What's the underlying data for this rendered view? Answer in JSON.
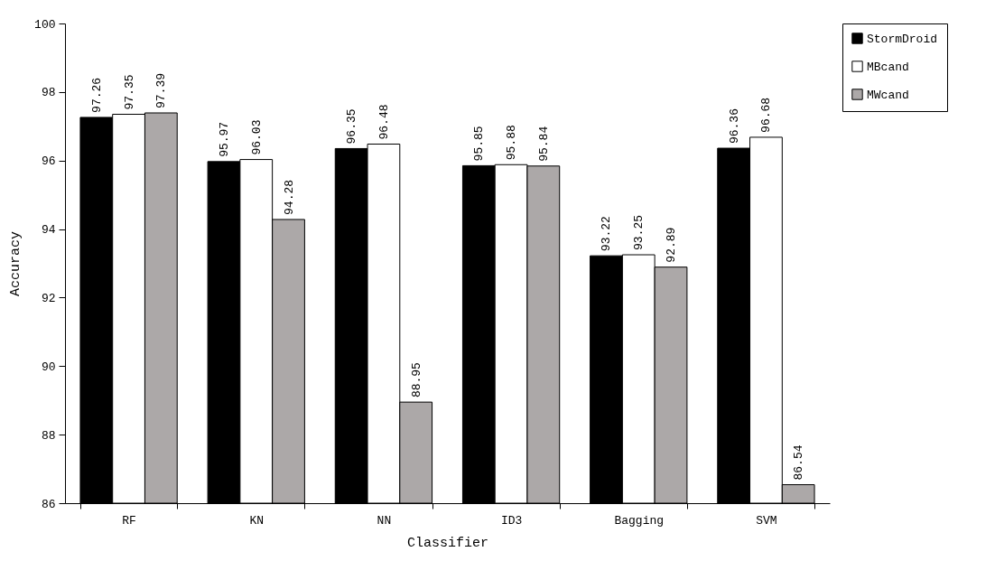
{
  "chart_data": {
    "type": "bar",
    "xlabel": "Classifier",
    "ylabel": "Accuracy",
    "categories": [
      "RF",
      "KN",
      "NN",
      "ID3",
      "Bagging",
      "SVM"
    ],
    "series": [
      {
        "name": "StormDroid",
        "color": "#000000",
        "values": [
          97.26,
          95.97,
          96.35,
          95.85,
          93.22,
          96.36
        ]
      },
      {
        "name": "MBcand",
        "color": "#ffffff",
        "values": [
          97.35,
          96.03,
          96.48,
          95.88,
          93.25,
          96.68
        ]
      },
      {
        "name": "MWcand",
        "color": "#aca8a8",
        "values": [
          97.39,
          94.28,
          88.95,
          95.84,
          92.89,
          86.54
        ]
      }
    ],
    "ylim": [
      86,
      100
    ],
    "yticks": [
      86,
      88,
      90,
      92,
      94,
      96,
      98,
      100
    ],
    "data_labels": true,
    "legend": "right",
    "grid": false
  }
}
